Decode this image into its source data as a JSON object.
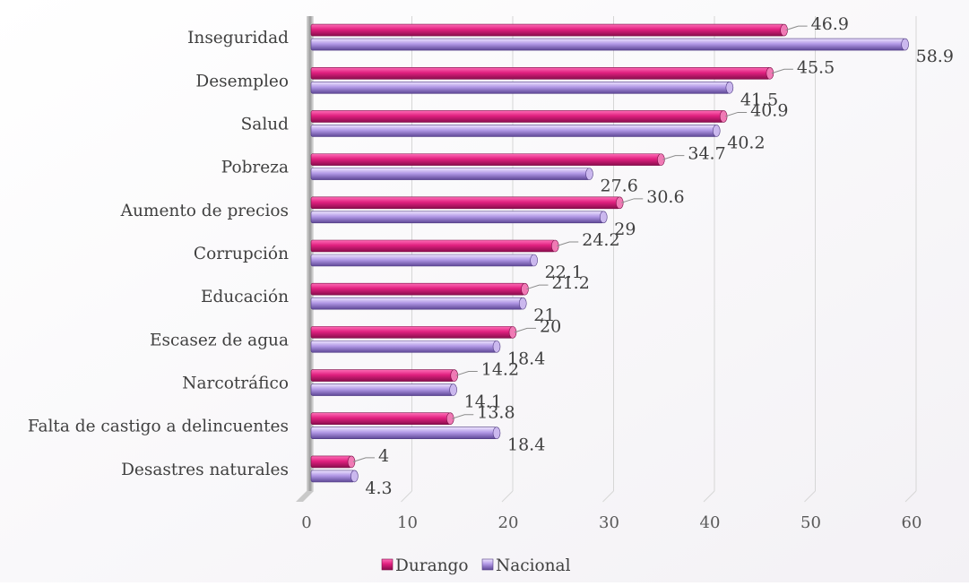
{
  "chart_data": {
    "type": "bar",
    "orientation": "horizontal",
    "categories": [
      "Inseguridad",
      "Desempleo",
      "Salud",
      "Pobreza",
      "Aumento de precios",
      "Corrupción",
      "Educación",
      "Escasez de agua",
      "Narcotráfico",
      "Falta de castigo a delincuentes",
      "Desastres naturales"
    ],
    "series": [
      {
        "name": "Durango",
        "color": "#d81b7a",
        "values": [
          46.9,
          45.5,
          40.9,
          34.7,
          30.6,
          24.2,
          21.2,
          20,
          14.2,
          13.8,
          4
        ]
      },
      {
        "name": "Nacional",
        "color": "#9b7fd0",
        "values": [
          58.9,
          41.5,
          40.2,
          27.6,
          29,
          22.1,
          21,
          18.4,
          14.1,
          18.4,
          4.3
        ]
      }
    ],
    "value_labels": {
      "Durango": [
        "46.9",
        "45.5",
        "40.9",
        "34.7",
        "30.6",
        "24.2",
        "21.2",
        "20",
        "14.2",
        "13.8",
        "4"
      ],
      "Nacional": [
        "58.9",
        "41.5",
        "40.2",
        "27.6",
        "29",
        "22.1",
        "21",
        "18.4",
        "14.1",
        "18.4",
        "4.3"
      ]
    },
    "xlim": [
      0,
      60
    ],
    "x_ticks": [
      "0",
      "10",
      "20",
      "30",
      "40",
      "50",
      "60"
    ],
    "grid": true,
    "legend_position": "bottom"
  }
}
